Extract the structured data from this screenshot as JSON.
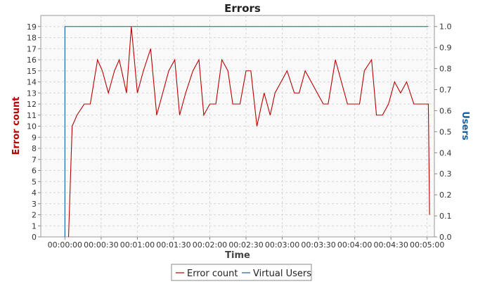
{
  "chart_data": {
    "type": "line",
    "title": "Errors",
    "xlabel": "Time",
    "ylabel_left": "Error count",
    "ylabel_right": "Users",
    "x_ticks": [
      "00:00:00",
      "00:00:30",
      "00:01:00",
      "00:01:30",
      "00:02:00",
      "00:02:30",
      "00:03:00",
      "00:03:30",
      "00:04:00",
      "00:04:30",
      "00:05:00"
    ],
    "y_left_ticks": [
      0,
      1,
      2,
      3,
      4,
      5,
      6,
      7,
      8,
      9,
      10,
      11,
      12,
      13,
      14,
      15,
      16,
      17,
      18,
      19
    ],
    "y_right_ticks": [
      "0.0",
      "0.1",
      "0.2",
      "0.3",
      "0.4",
      "0.5",
      "0.6",
      "0.7",
      "0.8",
      "0.9",
      "1.0"
    ],
    "ylim_left": [
      0,
      20
    ],
    "ylim_right": [
      0,
      1.0526
    ],
    "xlim_seconds": [
      -20,
      306
    ],
    "grid": true,
    "legend_position": "bottom-center",
    "series": [
      {
        "name": "Error count",
        "color": "#bb0000",
        "axis": "left",
        "x": [
          "00:00:03",
          "00:00:06",
          "00:00:10",
          "00:00:16",
          "00:00:21",
          "00:00:27",
          "00:00:31",
          "00:00:36",
          "00:00:41",
          "00:00:45",
          "00:00:51",
          "00:00:55",
          "00:01:00",
          "00:01:05",
          "00:01:11",
          "00:01:16",
          "00:01:21",
          "00:01:26",
          "00:01:31",
          "00:01:35",
          "00:01:40",
          "00:01:46",
          "00:01:51",
          "00:01:55",
          "00:02:00",
          "00:02:05",
          "00:02:10",
          "00:02:15",
          "00:02:19",
          "00:02:25",
          "00:02:30",
          "00:02:34",
          "00:02:39",
          "00:02:45",
          "00:02:50",
          "00:02:54",
          "00:02:59",
          "00:03:04",
          "00:03:10",
          "00:03:14",
          "00:03:19",
          "00:03:24",
          "00:03:29",
          "00:03:34",
          "00:03:38",
          "00:03:44",
          "00:03:49",
          "00:03:54",
          "00:03:58",
          "00:04:04",
          "00:04:08",
          "00:04:14",
          "00:04:18",
          "00:04:23",
          "00:04:28",
          "00:04:33",
          "00:04:38",
          "00:04:43",
          "00:04:49",
          "00:04:53",
          "00:04:58",
          "00:05:01",
          "00:05:02"
        ],
        "values": [
          0,
          10,
          11,
          12,
          12,
          16,
          15,
          13,
          15,
          16,
          13,
          19,
          13,
          15,
          17,
          11,
          13,
          15,
          16,
          11,
          13,
          15,
          16,
          11,
          12,
          12,
          16,
          15,
          12,
          12,
          15,
          15,
          10,
          13,
          11,
          13,
          14,
          15,
          13,
          13,
          15,
          14,
          13,
          12,
          12,
          16,
          14,
          12,
          12,
          12,
          15,
          16,
          11,
          11,
          12,
          14,
          13,
          14,
          12,
          12,
          12,
          12,
          2
        ]
      },
      {
        "name": "Virtual Users",
        "color": "#1a5d9e",
        "axis": "right",
        "x": [
          "00:00:00",
          "00:00:00",
          "00:05:01"
        ],
        "values": [
          0,
          1,
          1
        ]
      }
    ]
  }
}
